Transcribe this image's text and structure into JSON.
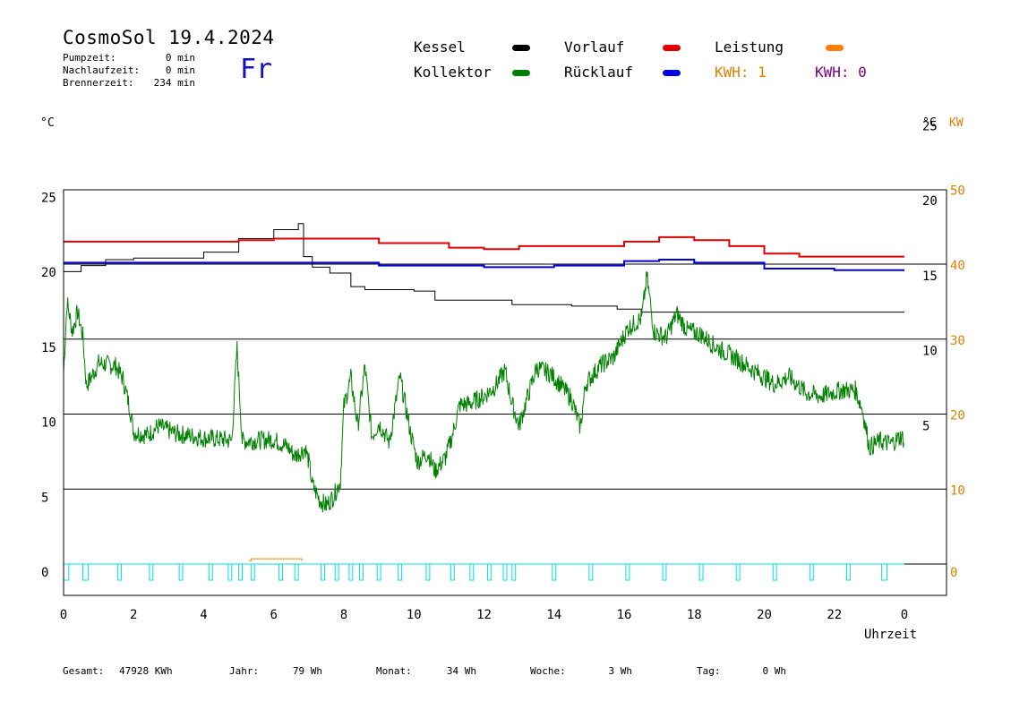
{
  "header": {
    "title": "CosmoSol 19.4.2024",
    "stats": [
      {
        "label": "Pumpzeit:",
        "value": "0 min"
      },
      {
        "label": "Nachlaufzeit:",
        "value": "0 min"
      },
      {
        "label": "Brennerzeit:",
        "value": "234 min"
      }
    ],
    "weekday": "Fr"
  },
  "legend": {
    "kessel": "Kessel",
    "kollektor": "Kollektor",
    "vorlauf": "Vorlauf",
    "ruecklauf": "Rücklauf",
    "leistung": "Leistung",
    "kwh1": "KWH: 1",
    "kwh2": "KWH: 0"
  },
  "footer": [
    {
      "label": "Gesamt:",
      "value": "47928 KWh"
    },
    {
      "label": "Jahr:",
      "value": "79 Wh"
    },
    {
      "label": "Monat:",
      "value": "34 Wh"
    },
    {
      "label": "Woche:",
      "value": "3 Wh"
    },
    {
      "label": "Tag:",
      "value": "0 Wh"
    }
  ],
  "colors": {
    "kessel": "#000000",
    "kollektor": "#008000",
    "vorlauf": "#e00000",
    "ruecklauf": "#0000e0",
    "leistung": "#ff8000",
    "pump": "#00e0e0",
    "orange_text": "#e08000",
    "purple_text": "#800080"
  },
  "chart_data": {
    "type": "line",
    "xlabel": "Uhrzeit",
    "y_left_unit": "°C",
    "y_right_unit": "°C",
    "y_right2_unit": "KW",
    "x_ticks": [
      "0",
      "2",
      "4",
      "6",
      "8",
      "10",
      "12",
      "14",
      "16",
      "18",
      "20",
      "22",
      "0"
    ],
    "xlim": [
      0,
      24
    ],
    "y_left_ticks": [
      "0",
      "5",
      "10",
      "15",
      "20",
      "25"
    ],
    "ylim_left": [
      0,
      25
    ],
    "y_right_ticks": [
      "5",
      "10",
      "15",
      "20",
      "25"
    ],
    "y_right2_ticks": [
      "0",
      "10",
      "20",
      "30",
      "40",
      "50"
    ],
    "ylim_right2": [
      0,
      50
    ],
    "series": [
      {
        "key": "kessel",
        "name": "Kessel",
        "points": [
          [
            0,
            19.5
          ],
          [
            0.5,
            19.9
          ],
          [
            1.2,
            20.3
          ],
          [
            2,
            20.4
          ],
          [
            3.3,
            20.4
          ],
          [
            4,
            20.8
          ],
          [
            5,
            21.7
          ],
          [
            6,
            22.3
          ],
          [
            6.7,
            22.7
          ],
          [
            6.85,
            20.5
          ],
          [
            7.1,
            19.8
          ],
          [
            7.6,
            19.4
          ],
          [
            8.2,
            18.5
          ],
          [
            8.6,
            18.3
          ],
          [
            10,
            18.2
          ],
          [
            10.6,
            17.6
          ],
          [
            12,
            17.6
          ],
          [
            12.8,
            17.3
          ],
          [
            14.5,
            17.2
          ],
          [
            15.8,
            17.0
          ],
          [
            16.5,
            16.8
          ],
          [
            17.4,
            16.8
          ],
          [
            24,
            16.8
          ]
        ]
      },
      {
        "key": "vorlauf",
        "name": "Vorlauf",
        "points": [
          [
            0,
            21.5
          ],
          [
            3.5,
            21.5
          ],
          [
            5,
            21.6
          ],
          [
            6,
            21.7
          ],
          [
            7,
            21.7
          ],
          [
            9,
            21.4
          ],
          [
            11,
            21.1
          ],
          [
            12,
            21.0
          ],
          [
            13,
            21.2
          ],
          [
            15,
            21.2
          ],
          [
            16,
            21.5
          ],
          [
            17,
            21.8
          ],
          [
            18,
            21.6
          ],
          [
            19,
            21.2
          ],
          [
            20,
            20.7
          ],
          [
            21,
            20.5
          ],
          [
            24,
            20.5
          ]
        ]
      },
      {
        "key": "ruecklauf",
        "name": "Rücklauf",
        "points": [
          [
            0,
            20.1
          ],
          [
            3,
            20.1
          ],
          [
            7,
            20.1
          ],
          [
            9,
            19.9
          ],
          [
            12,
            19.8
          ],
          [
            14,
            19.9
          ],
          [
            16,
            20.2
          ],
          [
            17,
            20.3
          ],
          [
            18,
            20.1
          ],
          [
            20,
            19.7
          ],
          [
            22,
            19.6
          ],
          [
            24,
            19.6
          ]
        ]
      },
      {
        "key": "kollektor",
        "name": "Kollektor",
        "noise": true,
        "points": [
          [
            0,
            12.8
          ],
          [
            0.1,
            17.5
          ],
          [
            0.25,
            15.5
          ],
          [
            0.4,
            16.8
          ],
          [
            0.55,
            15.2
          ],
          [
            0.65,
            11.9
          ],
          [
            0.8,
            12.5
          ],
          [
            1,
            13.4
          ],
          [
            1.5,
            13.2
          ],
          [
            1.7,
            12.3
          ],
          [
            1.9,
            10.3
          ],
          [
            2,
            8.8
          ],
          [
            2.4,
            8.6
          ],
          [
            2.7,
            9.2
          ],
          [
            3.2,
            8.7
          ],
          [
            3.8,
            8.5
          ],
          [
            4,
            8.4
          ],
          [
            4.6,
            8.3
          ],
          [
            4.8,
            8.2
          ],
          [
            4.95,
            14.4
          ],
          [
            5.1,
            8.2
          ],
          [
            6,
            8.3
          ],
          [
            6.4,
            7.8
          ],
          [
            6.6,
            7.2
          ],
          [
            6.9,
            7.7
          ],
          [
            7,
            6.8
          ],
          [
            7.1,
            5.3
          ],
          [
            7.3,
            4.3
          ],
          [
            7.5,
            3.9
          ],
          [
            7.7,
            4.5
          ],
          [
            7.9,
            5.5
          ],
          [
            8,
            10.5
          ],
          [
            8.2,
            12.4
          ],
          [
            8.4,
            9.2
          ],
          [
            8.6,
            13.2
          ],
          [
            8.8,
            8.5
          ],
          [
            9,
            9.4
          ],
          [
            9.3,
            8.1
          ],
          [
            9.6,
            12.5
          ],
          [
            9.9,
            8.8
          ],
          [
            10.1,
            6.8
          ],
          [
            10.4,
            7.4
          ],
          [
            10.6,
            6.2
          ],
          [
            10.9,
            7.1
          ],
          [
            11.1,
            8.6
          ],
          [
            11.3,
            10.6
          ],
          [
            11.6,
            10.7
          ],
          [
            12,
            11.2
          ],
          [
            12.3,
            11.8
          ],
          [
            12.6,
            12.9
          ],
          [
            12.8,
            10.7
          ],
          [
            13,
            9.2
          ],
          [
            13.2,
            10.8
          ],
          [
            13.5,
            13.1
          ],
          [
            13.9,
            12.7
          ],
          [
            14.2,
            11.9
          ],
          [
            14.5,
            11.0
          ],
          [
            14.75,
            9.1
          ],
          [
            14.9,
            12.0
          ],
          [
            15.3,
            13.2
          ],
          [
            15.7,
            13.8
          ],
          [
            16.1,
            15.7
          ],
          [
            16.5,
            16.4
          ],
          [
            16.65,
            19.2
          ],
          [
            16.85,
            15.5
          ],
          [
            17.2,
            15.1
          ],
          [
            17.5,
            16.7
          ],
          [
            17.8,
            15.6
          ],
          [
            18.2,
            15.3
          ],
          [
            18.6,
            14.5
          ],
          [
            19.2,
            13.7
          ],
          [
            19.7,
            12.9
          ],
          [
            20.3,
            12.0
          ],
          [
            20.7,
            12.5
          ],
          [
            21.2,
            11.4
          ],
          [
            21.6,
            11.2
          ],
          [
            22.2,
            11.6
          ],
          [
            22.6,
            11.6
          ],
          [
            22.8,
            10.3
          ],
          [
            23,
            7.8
          ],
          [
            23.3,
            8.2
          ],
          [
            23.6,
            8.0
          ],
          [
            23.9,
            8.5
          ],
          [
            24,
            8.3
          ]
        ]
      },
      {
        "key": "leistung",
        "name": "Leistung",
        "points": [
          [
            5.3,
            0.2
          ],
          [
            5.35,
            0.35
          ],
          [
            6.75,
            0.35
          ],
          [
            6.8,
            0.2
          ]
        ]
      },
      {
        "key": "pump",
        "name": "Pumpe",
        "pulses": [
          [
            0,
            0.15
          ],
          [
            0.55,
            0.7
          ],
          [
            1.55,
            1.65
          ],
          [
            2.45,
            2.55
          ],
          [
            3.3,
            3.4
          ],
          [
            4.15,
            4.25
          ],
          [
            4.7,
            4.8
          ],
          [
            5.0,
            5.1
          ],
          [
            5.35,
            5.45
          ],
          [
            6.15,
            6.25
          ],
          [
            6.6,
            6.7
          ],
          [
            7.35,
            7.45
          ],
          [
            7.75,
            7.85
          ],
          [
            8.15,
            8.25
          ],
          [
            8.45,
            8.55
          ],
          [
            8.95,
            9.05
          ],
          [
            9.55,
            9.65
          ],
          [
            10.35,
            10.45
          ],
          [
            11.05,
            11.15
          ],
          [
            11.6,
            11.7
          ],
          [
            12.1,
            12.2
          ],
          [
            12.55,
            12.65
          ],
          [
            12.8,
            12.9
          ],
          [
            13.95,
            14.05
          ],
          [
            15.0,
            15.1
          ],
          [
            16.05,
            16.15
          ],
          [
            17.1,
            17.2
          ],
          [
            18.15,
            18.25
          ],
          [
            19.2,
            19.3
          ],
          [
            20.25,
            20.35
          ],
          [
            21.3,
            21.4
          ],
          [
            22.35,
            22.45
          ],
          [
            23.35,
            23.5
          ]
        ]
      }
    ]
  }
}
